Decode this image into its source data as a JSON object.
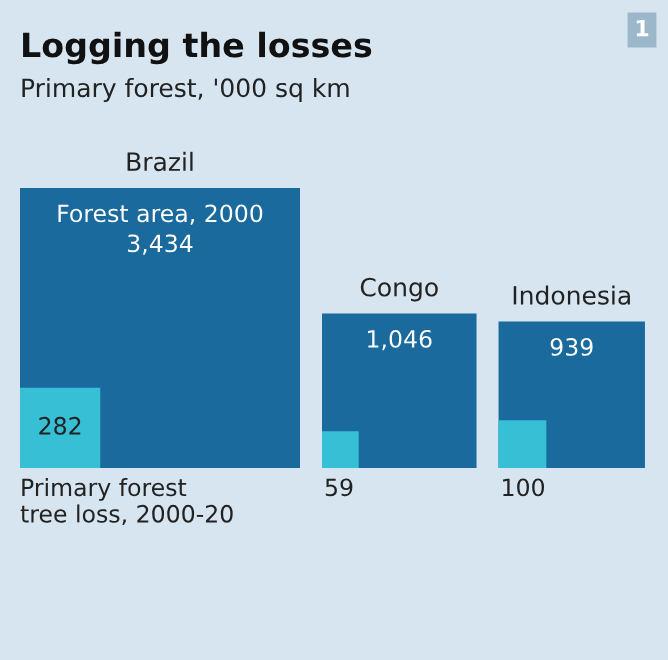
{
  "chart_data": {
    "type": "other",
    "title": "Logging the losses",
    "subtitle": "Primary forest, '000 sq km",
    "categories": [
      "Brazil",
      "Congo",
      "Indonesia"
    ],
    "series": [
      {
        "name": "Forest area, 2000",
        "color": "#1a6a9e",
        "values": [
          3434,
          1046,
          939
        ],
        "value_labels": [
          "3,434",
          "1,046",
          "939"
        ]
      },
      {
        "name": "Primary forest\ntree loss, 2000-20",
        "color": "#37bfd6",
        "values": [
          282,
          59,
          100
        ],
        "value_labels": [
          "282",
          "59",
          "100"
        ]
      }
    ],
    "annotations": [
      "1"
    ]
  }
}
